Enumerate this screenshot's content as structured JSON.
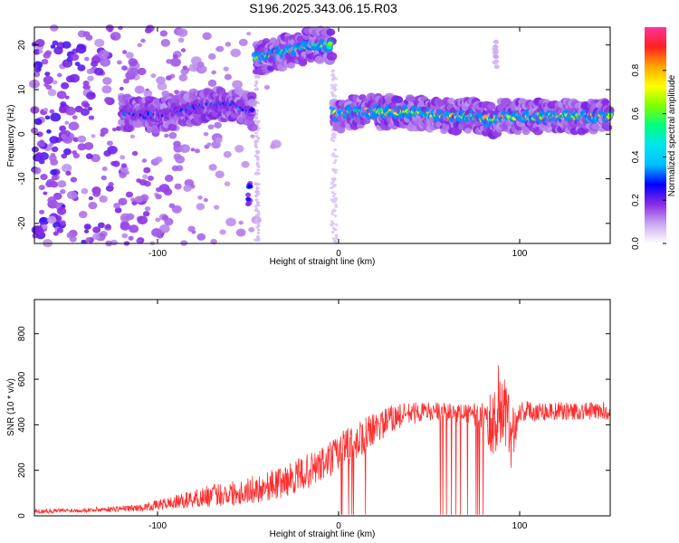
{
  "figure": {
    "title": "S196.2025.343.06.15.R03"
  },
  "chart_data": [
    {
      "type": "heatmap",
      "xlabel": "Height of straight line (km)",
      "ylabel": "Frequency (Hz)",
      "xlim": [
        -168,
        150
      ],
      "ylim": [
        -24.5,
        24
      ],
      "xticks": [
        "-100",
        "0",
        "100"
      ],
      "yticks": [
        "-20",
        "-10",
        "0",
        "10",
        "20"
      ],
      "colorbar": {
        "label": "Normalized spectral amplitude",
        "range": [
          0,
          1
        ],
        "ticks": [
          "0.0",
          "0.2",
          "0.4",
          "0.6",
          "0.8"
        ],
        "colors": [
          "#ffffff",
          "#c8a8f0",
          "#8a2be2",
          "#0000ff",
          "#00bfff",
          "#00e5ee",
          "#00ff7f",
          "#7fff00",
          "#ffff00",
          "#ffa500",
          "#ff2020",
          "#ff3399"
        ]
      },
      "ridges": [
        {
          "x": [
            -120,
            -100,
            -80,
            -60,
            -48
          ],
          "y": [
            5,
            4,
            6,
            7,
            5
          ],
          "peak": 0.35
        },
        {
          "x": [
            -46,
            -35,
            -25,
            -15,
            -4
          ],
          "y": [
            17,
            18,
            19,
            20,
            20
          ],
          "peak": 0.7
        },
        {
          "x": [
            -3,
            0,
            5,
            20,
            40,
            60,
            75,
            85,
            90,
            100,
            120,
            150
          ],
          "y": [
            5,
            4,
            5,
            5,
            5,
            4,
            4,
            3,
            4,
            4,
            4,
            4
          ],
          "peak": 0.85
        }
      ],
      "spots": [
        {
          "x": -49,
          "y": -13,
          "peak": 0.3
        },
        {
          "x": 87,
          "y": 18,
          "peak": 0.1
        }
      ]
    },
    {
      "type": "line",
      "xlabel": "Height of straight line (km)",
      "ylabel": "SNR (10 * v/v)",
      "xlim": [
        -168,
        150
      ],
      "ylim": [
        0,
        950
      ],
      "xticks": [
        "-100",
        "0",
        "100"
      ],
      "yticks": [
        "0",
        "200",
        "400",
        "600",
        "800"
      ],
      "color": "#ff2d2d",
      "envelope": {
        "x": [
          -168,
          -140,
          -110,
          -90,
          -70,
          -50,
          -30,
          -10,
          0,
          10,
          20,
          30,
          40,
          50,
          60,
          70,
          80,
          85,
          90,
          95,
          100,
          120,
          150
        ],
        "center": [
          20,
          25,
          35,
          60,
          90,
          110,
          150,
          220,
          270,
          330,
          380,
          430,
          450,
          460,
          455,
          450,
          440,
          400,
          500,
          350,
          460,
          460,
          460
        ],
        "spread": [
          10,
          10,
          15,
          30,
          50,
          60,
          70,
          80,
          90,
          90,
          70,
          60,
          50,
          40,
          40,
          40,
          60,
          150,
          250,
          150,
          50,
          40,
          40
        ]
      }
    }
  ]
}
